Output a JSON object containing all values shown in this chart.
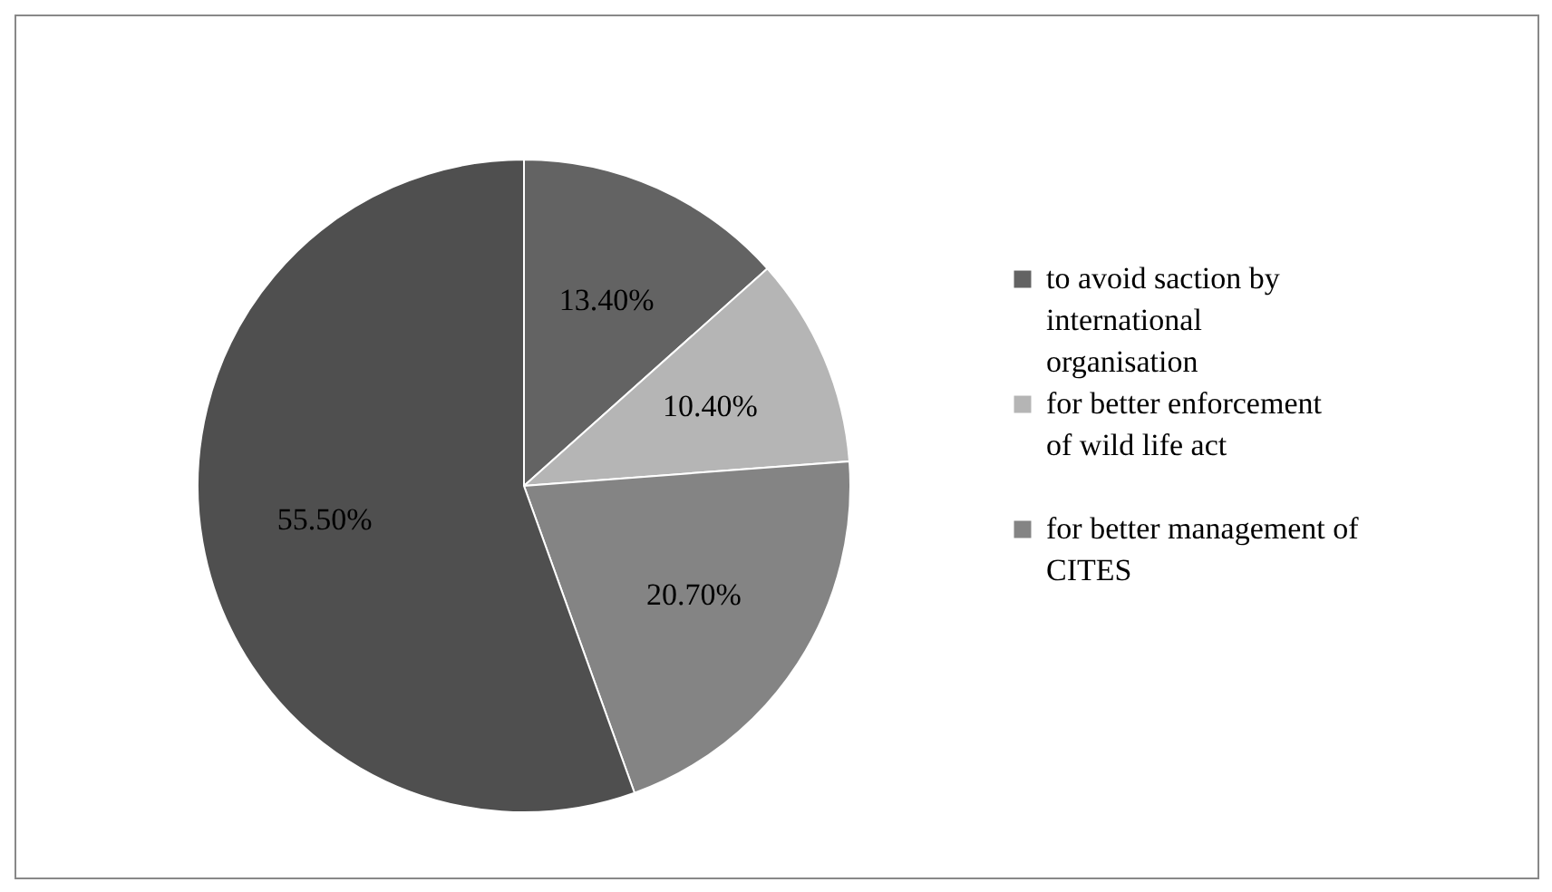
{
  "chart_data": {
    "type": "pie",
    "categories": [
      "to avoid saction by international organisation",
      "for better enforcement of wild life act",
      "for better management of CITES",
      null
    ],
    "values": [
      13.4,
      10.4,
      20.7,
      55.5
    ],
    "colors": [
      "#636363",
      "#b5b5b5",
      "#848484",
      "#4f4f4f"
    ],
    "value_labels": [
      "13.40%",
      "10.40%",
      "20.70%",
      "55.50%"
    ],
    "legend": "right"
  }
}
